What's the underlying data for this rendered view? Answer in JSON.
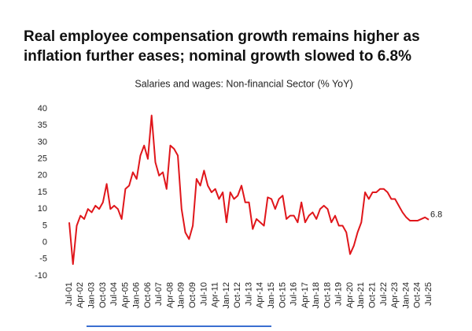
{
  "chart_data": {
    "type": "line",
    "title": "Real employee compensation growth remains higher as inflation further eases; nominal growth slowed to 6.8%",
    "subtitle": "Salaries and wages: Non-financial Sector (% YoY)",
    "categories": [
      "Jul-01",
      null,
      null,
      "Apr-02",
      null,
      null,
      "Jan-03",
      null,
      null,
      "Oct-03",
      null,
      null,
      "Jul-04",
      null,
      null,
      "Apr-05",
      null,
      null,
      "Jan-06",
      null,
      null,
      "Oct-06",
      null,
      null,
      "Jul-07",
      null,
      null,
      "Apr-08",
      null,
      null,
      "Jan-09",
      null,
      null,
      "Oct-09",
      null,
      null,
      "Jul-10",
      null,
      null,
      "Apr-11",
      null,
      null,
      "Jan-12",
      null,
      null,
      "Oct-12",
      null,
      null,
      "Jul-13",
      null,
      null,
      "Apr-14",
      null,
      null,
      "Jan-15",
      null,
      null,
      "Oct-15",
      null,
      null,
      "Jul-16",
      null,
      null,
      "Apr-17",
      null,
      null,
      "Jan-18",
      null,
      null,
      "Oct-18",
      null,
      null,
      "Jul-19",
      null,
      null,
      "Apr-20",
      null,
      null,
      "Jan-21",
      null,
      null,
      "Oct-21",
      null,
      null,
      "Jul-22",
      null,
      null,
      "Apr-23",
      null,
      null,
      "Jan-24",
      null,
      null,
      "Oct-24",
      null,
      null,
      "Jul-25"
    ],
    "values": [
      6,
      -6.5,
      5,
      8,
      7,
      10,
      9,
      11,
      10,
      12,
      17.5,
      10,
      11,
      10,
      7,
      16,
      17,
      21,
      19,
      26,
      29,
      25,
      38,
      24,
      20,
      21,
      16,
      29,
      28,
      26,
      10,
      3,
      1,
      5,
      19,
      17,
      21.5,
      17,
      15,
      16,
      13,
      15,
      6,
      15,
      13,
      14,
      17,
      12,
      12,
      4,
      7,
      6,
      5,
      13.5,
      13,
      10,
      13,
      14,
      7,
      8,
      8,
      6,
      12,
      6,
      8,
      9,
      7,
      10,
      11,
      10,
      6,
      8,
      5,
      5,
      3,
      -3.5,
      -1,
      3,
      6,
      15,
      13,
      15,
      15,
      16,
      16,
      15,
      13,
      13,
      11,
      9,
      7.5,
      6.5,
      6.5,
      6.5,
      7,
      7.5,
      6.8
    ],
    "color": "#e0161b",
    "ylim": [
      -10,
      40
    ],
    "yticks": [
      -10,
      -5,
      0,
      5,
      10,
      15,
      20,
      25,
      30,
      35,
      40
    ],
    "grid": false
  }
}
